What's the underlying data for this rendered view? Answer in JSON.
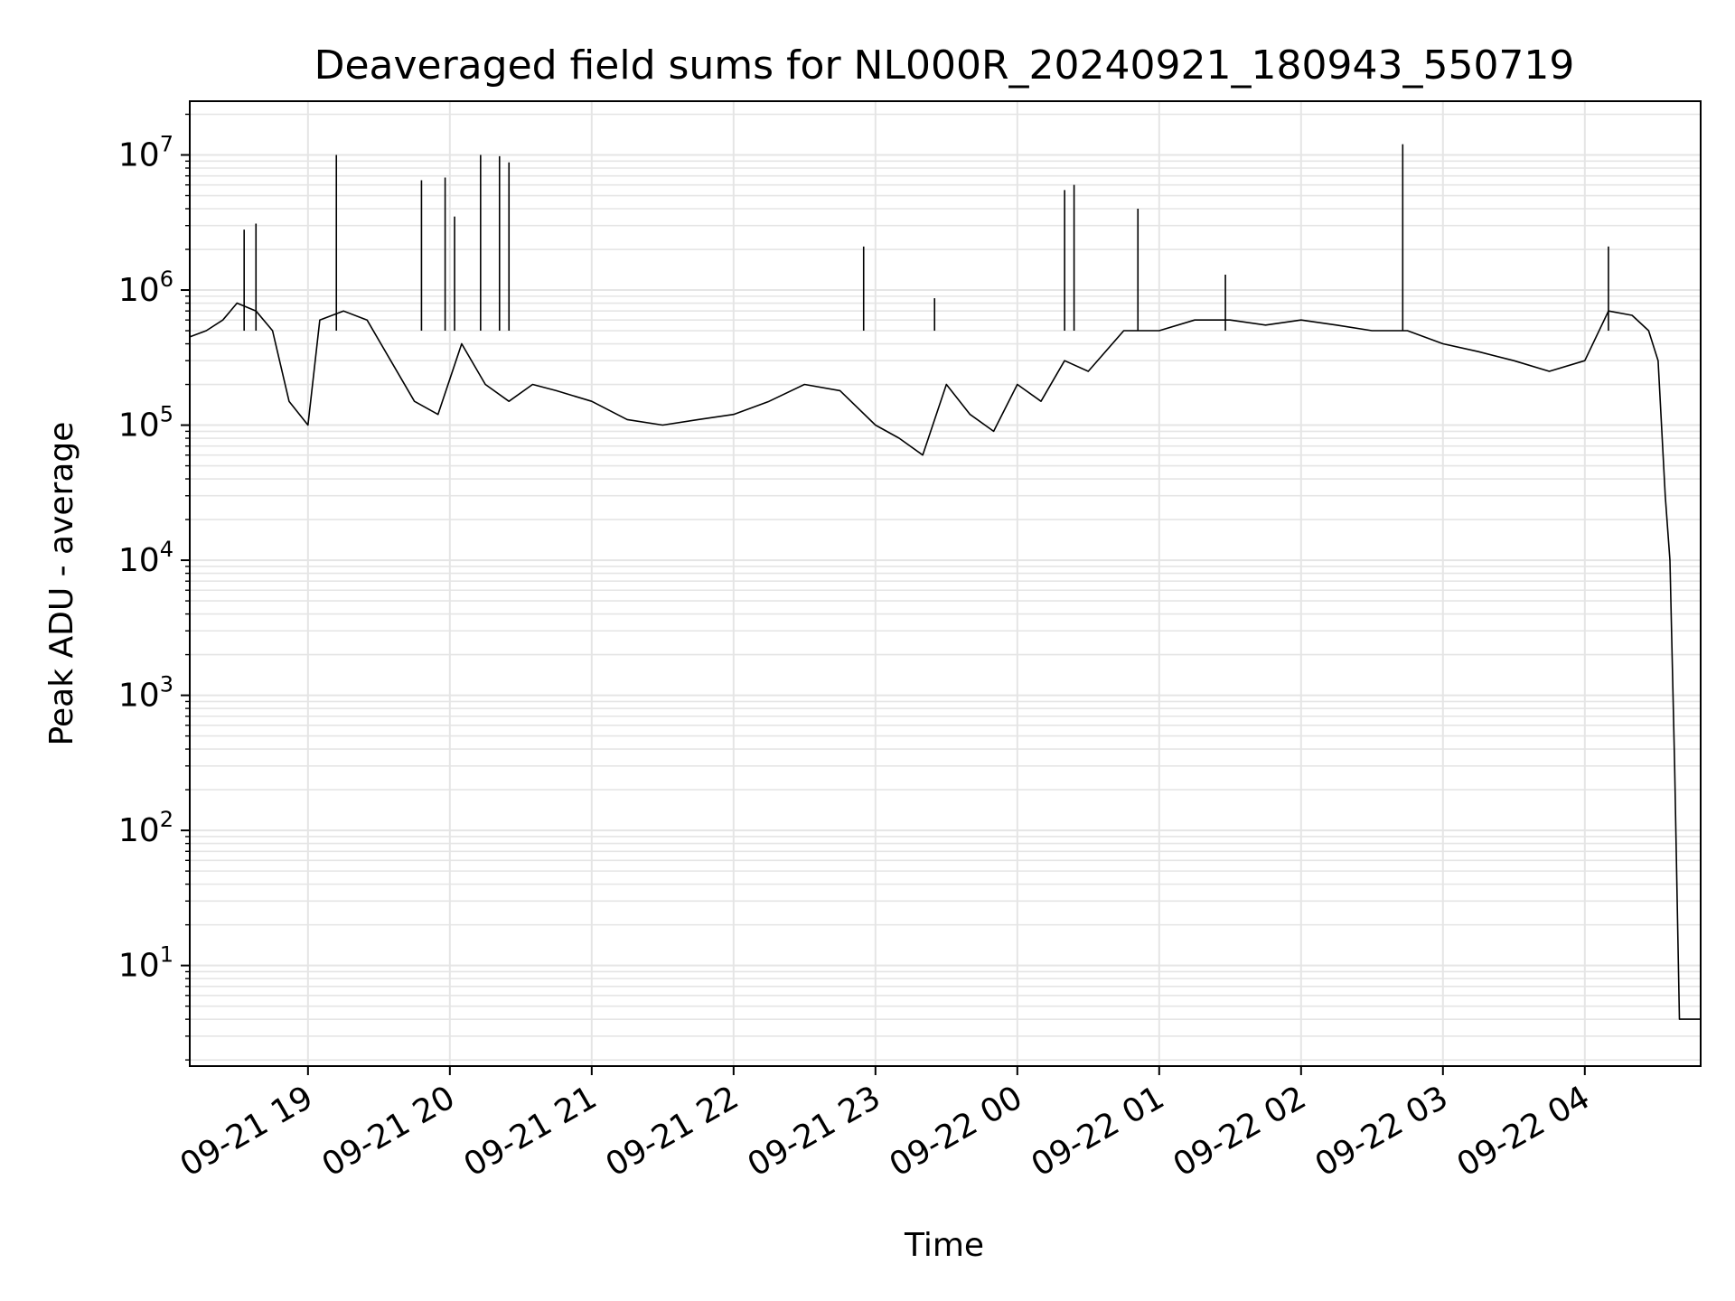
{
  "chart_data": {
    "type": "line",
    "title": "Deaveraged field sums for NL000R_20240921_180943_550719",
    "xlabel": "Time",
    "ylabel": "Peak ADU - average",
    "yscale": "log",
    "ylim": [
      1.8,
      25000000
    ],
    "xlim": [
      "2024-09-21 18:10",
      "2024-09-22 04:49"
    ],
    "grid": true,
    "x_ticks": [
      {
        "value": "2024-09-21 19:00",
        "label": "09-21 19"
      },
      {
        "value": "2024-09-21 20:00",
        "label": "09-21 20"
      },
      {
        "value": "2024-09-21 21:00",
        "label": "09-21 21"
      },
      {
        "value": "2024-09-21 22:00",
        "label": "09-21 22"
      },
      {
        "value": "2024-09-21 23:00",
        "label": "09-21 23"
      },
      {
        "value": "2024-09-22 00:00",
        "label": "09-22 00"
      },
      {
        "value": "2024-09-22 01:00",
        "label": "09-22 01"
      },
      {
        "value": "2024-09-22 02:00",
        "label": "09-22 02"
      },
      {
        "value": "2024-09-22 03:00",
        "label": "09-22 03"
      },
      {
        "value": "2024-09-22 04:00",
        "label": "09-22 04"
      }
    ],
    "y_ticks": [
      {
        "value": 10,
        "base": "10",
        "exp": "1"
      },
      {
        "value": 100,
        "base": "10",
        "exp": "2"
      },
      {
        "value": 1000,
        "base": "10",
        "exp": "3"
      },
      {
        "value": 10000,
        "base": "10",
        "exp": "4"
      },
      {
        "value": 100000,
        "base": "10",
        "exp": "5"
      },
      {
        "value": 1000000,
        "base": "10",
        "exp": "6"
      },
      {
        "value": 10000000,
        "base": "10",
        "exp": "7"
      }
    ],
    "line_color": "#000000",
    "series": [
      {
        "x": [
          "2024-09-21 18:10",
          "2024-09-21 18:17",
          "2024-09-21 18:24",
          "2024-09-21 18:30",
          "2024-09-21 18:38",
          "2024-09-21 18:45",
          "2024-09-21 18:52",
          "2024-09-21 19:00",
          "2024-09-21 19:05",
          "2024-09-21 19:15",
          "2024-09-21 19:25",
          "2024-09-21 19:35",
          "2024-09-21 19:45",
          "2024-09-21 19:55",
          "2024-09-21 20:05",
          "2024-09-21 20:15",
          "2024-09-21 20:25",
          "2024-09-21 20:35",
          "2024-09-21 20:45",
          "2024-09-21 21:00",
          "2024-09-21 21:15",
          "2024-09-21 21:30",
          "2024-09-21 21:45",
          "2024-09-21 22:00",
          "2024-09-21 22:15",
          "2024-09-21 22:30",
          "2024-09-21 22:45",
          "2024-09-21 23:00",
          "2024-09-21 23:10",
          "2024-09-21 23:20",
          "2024-09-21 23:30",
          "2024-09-21 23:40",
          "2024-09-21 23:50",
          "2024-09-22 00:00",
          "2024-09-22 00:10",
          "2024-09-22 00:20",
          "2024-09-22 00:30",
          "2024-09-22 00:45",
          "2024-09-22 01:00",
          "2024-09-22 01:15",
          "2024-09-22 01:30",
          "2024-09-22 01:45",
          "2024-09-22 02:00",
          "2024-09-22 02:15",
          "2024-09-22 02:30",
          "2024-09-22 02:45",
          "2024-09-22 03:00",
          "2024-09-22 03:15",
          "2024-09-22 03:30",
          "2024-09-22 03:45",
          "2024-09-22 04:00",
          "2024-09-22 04:10",
          "2024-09-22 04:20",
          "2024-09-22 04:27",
          "2024-09-22 04:31",
          "2024-09-22 04:34",
          "2024-09-22 04:36",
          "2024-09-22 04:38",
          "2024-09-22 04:40",
          "2024-09-22 04:49"
        ],
        "y": [
          450000,
          500000,
          600000,
          800000,
          700000,
          500000,
          150000,
          100000,
          600000,
          700000,
          600000,
          300000,
          150000,
          120000,
          400000,
          200000,
          150000,
          200000,
          180000,
          150000,
          110000,
          100000,
          110000,
          120000,
          150000,
          200000,
          180000,
          100000,
          80000,
          60000,
          200000,
          120000,
          90000,
          200000,
          150000,
          300000,
          250000,
          500000,
          500000,
          600000,
          600000,
          550000,
          600000,
          550000,
          500000,
          500000,
          400000,
          350000,
          300000,
          250000,
          300000,
          700000,
          650000,
          500000,
          300000,
          30000,
          10000,
          300,
          4,
          4
        ]
      },
      {
        "name": "spikes",
        "x": [
          "2024-09-21 18:33",
          "2024-09-21 18:38",
          "2024-09-21 19:12",
          "2024-09-21 19:48",
          "2024-09-21 19:58",
          "2024-09-21 20:02",
          "2024-09-21 20:13",
          "2024-09-21 20:21",
          "2024-09-21 20:25",
          "2024-09-21 22:55",
          "2024-09-21 23:25",
          "2024-09-22 00:20",
          "2024-09-22 00:24",
          "2024-09-22 00:51",
          "2024-09-22 01:28",
          "2024-09-22 02:43",
          "2024-09-22 04:10"
        ],
        "y": [
          2800000,
          3100000,
          10000000,
          6500000,
          6800000,
          3500000,
          10000000,
          9800000,
          8800000,
          2100000,
          870000,
          5500000,
          6000000,
          4000000,
          1300000,
          12000000,
          2100000
        ]
      }
    ]
  }
}
